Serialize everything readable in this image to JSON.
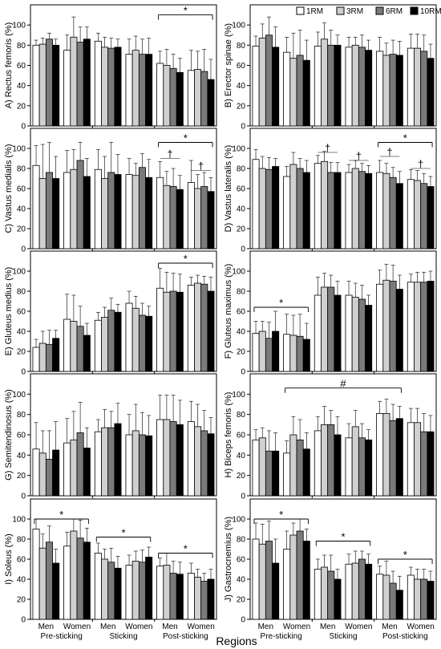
{
  "legend": [
    {
      "label": "1RM",
      "color": "#ffffff"
    },
    {
      "label": "3RM",
      "color": "#d0d0d0"
    },
    {
      "label": "6RM",
      "color": "#7a7a7a"
    },
    {
      "label": "10RM",
      "color": "#000000"
    }
  ],
  "x_title": "Regions",
  "chart_data": [
    {
      "type": "bar",
      "id": "A",
      "ylabel": "A) Rectus femoris (%)",
      "ylim": [
        0,
        120
      ],
      "yticks": [
        0,
        20,
        40,
        60,
        80,
        100
      ],
      "groups": [
        "Men",
        "Women",
        "Men",
        "Women",
        "Men",
        "Women"
      ],
      "regions": [
        "Pre-sticking",
        "Sticking",
        "Post-sticking"
      ],
      "values": [
        [
          80,
          81,
          86,
          80
        ],
        [
          75,
          88,
          83,
          86
        ],
        [
          84,
          78,
          77,
          78
        ],
        [
          71,
          75,
          71,
          71
        ],
        [
          62,
          60,
          57,
          53
        ],
        [
          55,
          56,
          54,
          46
        ]
      ],
      "errors": [
        [
          5,
          6,
          6,
          6
        ],
        [
          15,
          20,
          15,
          12
        ],
        [
          8,
          10,
          10,
          8
        ],
        [
          15,
          14,
          15,
          16
        ],
        [
          12,
          16,
          14,
          14
        ],
        [
          20,
          18,
          22,
          20
        ]
      ],
      "annotations": [
        {
          "text": "*",
          "type": "bracket",
          "from": 4,
          "to": 5,
          "y": 110
        }
      ]
    },
    {
      "type": "bar",
      "id": "B",
      "ylabel": "B) Erector spinae (%)",
      "ylim": [
        0,
        120
      ],
      "yticks": [
        0,
        20,
        40,
        60,
        80,
        100
      ],
      "groups": [
        "Men",
        "Women",
        "Men",
        "Women",
        "Men",
        "Women"
      ],
      "regions": [
        "Pre-sticking",
        "Sticking",
        "Post-sticking"
      ],
      "values": [
        [
          79,
          87,
          90,
          78
        ],
        [
          73,
          67,
          70,
          65
        ],
        [
          79,
          86,
          80,
          80
        ],
        [
          78,
          80,
          78,
          75
        ],
        [
          74,
          70,
          71,
          70
        ],
        [
          77,
          77,
          74,
          67
        ]
      ],
      "errors": [
        [
          10,
          14,
          18,
          20
        ],
        [
          15,
          25,
          25,
          20
        ],
        [
          14,
          16,
          15,
          10
        ],
        [
          10,
          8,
          12,
          10
        ],
        [
          14,
          12,
          14,
          14
        ],
        [
          14,
          14,
          16,
          14
        ]
      ],
      "annotations": []
    },
    {
      "type": "bar",
      "id": "C",
      "ylabel": "C) Vastus medialis (%)",
      "ylim": [
        0,
        120
      ],
      "yticks": [
        0,
        20,
        40,
        60,
        80,
        100
      ],
      "groups": [
        "Men",
        "Women",
        "Men",
        "Women",
        "Men",
        "Women"
      ],
      "regions": [
        "Pre-sticking",
        "Sticking",
        "Post-sticking"
      ],
      "values": [
        [
          83,
          70,
          76,
          70
        ],
        [
          76,
          79,
          88,
          72
        ],
        [
          79,
          70,
          76,
          74
        ],
        [
          74,
          73,
          81,
          71
        ],
        [
          71,
          63,
          62,
          59
        ],
        [
          66,
          60,
          62,
          57
        ]
      ],
      "errors": [
        [
          20,
          34,
          30,
          22
        ],
        [
          22,
          20,
          18,
          18
        ],
        [
          20,
          22,
          30,
          20
        ],
        [
          16,
          12,
          14,
          18
        ],
        [
          16,
          14,
          18,
          14
        ],
        [
          22,
          14,
          14,
          14
        ]
      ],
      "annotations": [
        {
          "text": "*",
          "type": "bracket",
          "from": 4,
          "to": 5,
          "y": 106
        },
        {
          "text": "†",
          "type": "small",
          "from": 4,
          "to": 4,
          "y": 90
        },
        {
          "text": "†",
          "type": "small",
          "from": 5,
          "to": 5,
          "y": 78
        }
      ]
    },
    {
      "type": "bar",
      "id": "D",
      "ylabel": "D) Vastus lateralis (%)",
      "ylim": [
        0,
        120
      ],
      "yticks": [
        0,
        20,
        40,
        60,
        80,
        100
      ],
      "groups": [
        "Men",
        "Women",
        "Men",
        "Women",
        "Men",
        "Women"
      ],
      "regions": [
        "Pre-sticking",
        "Sticking",
        "Post-sticking"
      ],
      "values": [
        [
          89,
          80,
          79,
          82
        ],
        [
          72,
          84,
          80,
          76
        ],
        [
          85,
          87,
          76,
          76
        ],
        [
          76,
          80,
          77,
          75
        ],
        [
          76,
          75,
          71,
          65
        ],
        [
          69,
          68,
          65,
          62
        ]
      ],
      "errors": [
        [
          10,
          12,
          12,
          8
        ],
        [
          10,
          12,
          10,
          12
        ],
        [
          8,
          10,
          10,
          10
        ],
        [
          8,
          8,
          8,
          8
        ],
        [
          12,
          10,
          10,
          12
        ],
        [
          10,
          10,
          10,
          10
        ]
      ],
      "annotations": [
        {
          "text": "*",
          "type": "bracket",
          "from": 4,
          "to": 5,
          "y": 106
        },
        {
          "text": "†",
          "type": "small",
          "from": 2,
          "to": 2,
          "y": 96
        },
        {
          "text": "†",
          "type": "small",
          "from": 3,
          "to": 3,
          "y": 88
        },
        {
          "text": "†",
          "type": "small",
          "from": 4,
          "to": 4,
          "y": 92
        },
        {
          "text": "†",
          "type": "small",
          "from": 5,
          "to": 5,
          "y": 80
        }
      ]
    },
    {
      "type": "bar",
      "id": "E",
      "ylabel": "E) Gluteus medius (%)",
      "ylim": [
        0,
        120
      ],
      "yticks": [
        0,
        20,
        40,
        60,
        80,
        100
      ],
      "groups": [
        "Men",
        "Women",
        "Men",
        "Women",
        "Men",
        "Women"
      ],
      "regions": [
        "Pre-sticking",
        "Sticking",
        "Post-sticking"
      ],
      "values": [
        [
          24,
          28,
          27,
          33
        ],
        [
          52,
          50,
          45,
          36
        ],
        [
          51,
          54,
          61,
          59
        ],
        [
          68,
          63,
          56,
          55
        ],
        [
          83,
          79,
          80,
          79
        ],
        [
          86,
          88,
          87,
          80
        ]
      ],
      "errors": [
        [
          8,
          12,
          14,
          8
        ],
        [
          25,
          26,
          20,
          12
        ],
        [
          8,
          10,
          12,
          8
        ],
        [
          12,
          12,
          12,
          10
        ],
        [
          20,
          20,
          18,
          18
        ],
        [
          8,
          8,
          8,
          14
        ]
      ],
      "annotations": [
        {
          "text": "*",
          "type": "bracket",
          "from": 4,
          "to": 5,
          "y": 108
        }
      ]
    },
    {
      "type": "bar",
      "id": "F",
      "ylabel": "F) Gluteus maximus (%)",
      "ylim": [
        0,
        120
      ],
      "yticks": [
        0,
        20,
        40,
        60,
        80,
        100
      ],
      "groups": [
        "Men",
        "Women",
        "Men",
        "Women",
        "Men",
        "Women"
      ],
      "regions": [
        "Pre-sticking",
        "Sticking",
        "Post-sticking"
      ],
      "values": [
        [
          38,
          40,
          33,
          40
        ],
        [
          37,
          36,
          35,
          32
        ],
        [
          76,
          84,
          84,
          76
        ],
        [
          76,
          74,
          72,
          66
        ],
        [
          87,
          91,
          90,
          82
        ],
        [
          89,
          89,
          89,
          90
        ]
      ],
      "errors": [
        [
          12,
          10,
          16,
          20
        ],
        [
          20,
          20,
          22,
          16
        ],
        [
          18,
          14,
          12,
          14
        ],
        [
          14,
          14,
          14,
          10
        ],
        [
          14,
          16,
          16,
          14
        ],
        [
          8,
          10,
          10,
          10
        ]
      ],
      "annotations": [
        {
          "text": "*",
          "type": "bracket",
          "from": 0,
          "to": 1,
          "y": 64
        }
      ]
    },
    {
      "type": "bar",
      "id": "G",
      "ylabel": "G) Semitendinosus (%)",
      "ylim": [
        0,
        120
      ],
      "yticks": [
        0,
        20,
        40,
        60,
        80,
        100
      ],
      "groups": [
        "Men",
        "Women",
        "Men",
        "Women",
        "Men",
        "Women"
      ],
      "regions": [
        "Pre-sticking",
        "Sticking",
        "Post-sticking"
      ],
      "values": [
        [
          46,
          42,
          36,
          45
        ],
        [
          52,
          55,
          62,
          47
        ],
        [
          63,
          67,
          67,
          71
        ],
        [
          60,
          64,
          60,
          59
        ],
        [
          75,
          75,
          73,
          70
        ],
        [
          73,
          68,
          64,
          61
        ]
      ],
      "errors": [
        [
          26,
          22,
          28,
          28
        ],
        [
          24,
          28,
          30,
          20
        ],
        [
          12,
          18,
          16,
          20
        ],
        [
          20,
          26,
          22,
          20
        ],
        [
          24,
          24,
          26,
          24
        ],
        [
          20,
          22,
          20,
          16
        ]
      ],
      "annotations": []
    },
    {
      "type": "bar",
      "id": "H",
      "ylabel": "H) Biceps femoris (%)",
      "ylim": [
        0,
        120
      ],
      "yticks": [
        0,
        20,
        40,
        60,
        80,
        100
      ],
      "groups": [
        "Men",
        "Women",
        "Men",
        "Women",
        "Men",
        "Women"
      ],
      "regions": [
        "Pre-sticking",
        "Sticking",
        "Post-sticking"
      ],
      "values": [
        [
          55,
          57,
          44,
          44
        ],
        [
          42,
          60,
          55,
          46
        ],
        [
          64,
          70,
          70,
          60
        ],
        [
          57,
          68,
          57,
          55
        ],
        [
          81,
          81,
          74,
          76
        ],
        [
          72,
          72,
          63,
          63
        ]
      ],
      "errors": [
        [
          10,
          10,
          20,
          18
        ],
        [
          12,
          18,
          20,
          16
        ],
        [
          14,
          18,
          14,
          18
        ],
        [
          14,
          16,
          14,
          10
        ],
        [
          12,
          14,
          16,
          12
        ],
        [
          14,
          14,
          18,
          16
        ]
      ],
      "annotations": [
        {
          "text": "#",
          "type": "bracket",
          "from": 1,
          "to": 4,
          "y": 106
        }
      ]
    },
    {
      "type": "bar",
      "id": "I",
      "ylabel": "I) Soleus (%)",
      "ylim": [
        0,
        120
      ],
      "yticks": [
        0,
        20,
        40,
        60,
        80,
        100
      ],
      "groups": [
        "Men",
        "Women",
        "Men",
        "Women",
        "Men",
        "Women"
      ],
      "regions": [
        "Pre-sticking",
        "Sticking",
        "Post-sticking"
      ],
      "values": [
        [
          90,
          71,
          77,
          56
        ],
        [
          73,
          88,
          81,
          77
        ],
        [
          66,
          60,
          57,
          51
        ],
        [
          54,
          58,
          57,
          62
        ],
        [
          53,
          54,
          46,
          45
        ],
        [
          46,
          42,
          38,
          40
        ]
      ],
      "errors": [
        [
          10,
          14,
          16,
          14
        ],
        [
          14,
          12,
          18,
          14
        ],
        [
          10,
          10,
          14,
          12
        ],
        [
          10,
          10,
          12,
          10
        ],
        [
          8,
          12,
          12,
          12
        ],
        [
          10,
          8,
          8,
          10
        ]
      ],
      "annotations": [
        {
          "text": "*",
          "type": "bracket",
          "from": 0,
          "to": 1,
          "y": 100
        },
        {
          "text": "*",
          "type": "bracket",
          "from": 2,
          "to": 3,
          "y": 82
        },
        {
          "text": "*",
          "type": "bracket",
          "from": 4,
          "to": 5,
          "y": 66
        }
      ]
    },
    {
      "type": "bar",
      "id": "J",
      "ylabel": "J) Gastrocnemius (%)",
      "ylim": [
        0,
        120
      ],
      "yticks": [
        0,
        20,
        40,
        60,
        80,
        100
      ],
      "groups": [
        "Men",
        "Women",
        "Men",
        "Women",
        "Men",
        "Women"
      ],
      "regions": [
        "Pre-sticking",
        "Sticking",
        "Post-sticking"
      ],
      "values": [
        [
          80,
          75,
          78,
          56
        ],
        [
          70,
          84,
          88,
          78
        ],
        [
          50,
          52,
          48,
          40
        ],
        [
          55,
          56,
          60,
          55
        ],
        [
          45,
          44,
          36,
          29
        ],
        [
          44,
          40,
          40,
          38
        ]
      ],
      "errors": [
        [
          16,
          20,
          20,
          24
        ],
        [
          18,
          12,
          12,
          12
        ],
        [
          10,
          12,
          16,
          10
        ],
        [
          10,
          12,
          8,
          10
        ],
        [
          8,
          14,
          12,
          14
        ],
        [
          8,
          10,
          10,
          10
        ]
      ],
      "annotations": [
        {
          "text": "*",
          "type": "bracket",
          "from": 0,
          "to": 1,
          "y": 100
        },
        {
          "text": "*",
          "type": "bracket",
          "from": 2,
          "to": 3,
          "y": 78
        },
        {
          "text": "*",
          "type": "bracket",
          "from": 4,
          "to": 5,
          "y": 60
        }
      ]
    }
  ]
}
